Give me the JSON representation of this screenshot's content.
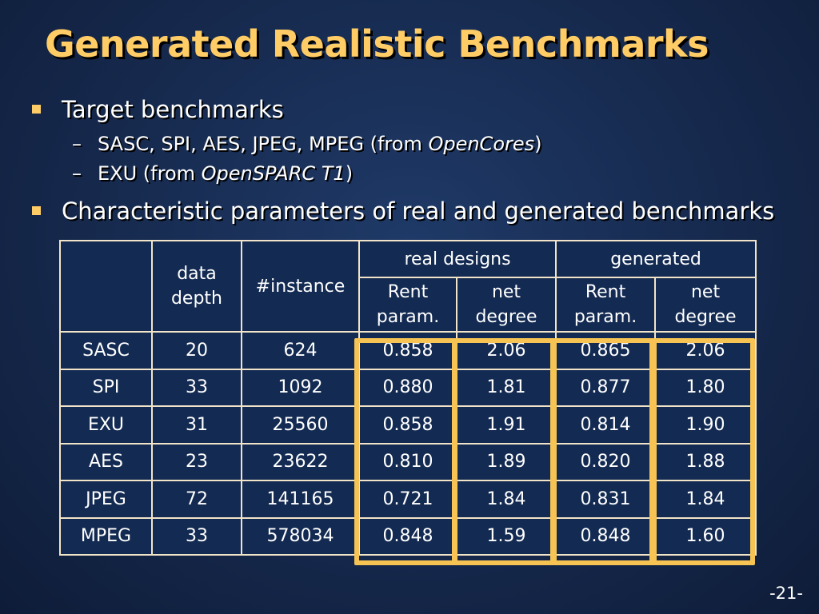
{
  "title": "Generated Realistic Benchmarks",
  "bullets": [
    {
      "text": "Target benchmarks",
      "subs": [
        {
          "dash": "–",
          "pre": "SASC, SPI, AES, JPEG, MPEG (from ",
          "em": "OpenCores",
          "post": ")"
        },
        {
          "dash": "–",
          "pre": "EXU (from ",
          "em": "OpenSPARC T1",
          "post": ")"
        }
      ]
    },
    {
      "text": "Characteristic parameters of real and generated benchmarks"
    }
  ],
  "table": {
    "headers": {
      "data_depth": [
        "data",
        "depth"
      ],
      "instance": "#instance",
      "real_designs": "real designs",
      "generated": "generated",
      "rent_param": [
        "Rent",
        "param."
      ],
      "net_degree": [
        "net",
        "degree"
      ]
    },
    "rows": [
      {
        "name": "SASC",
        "depth": "20",
        "instance": "624",
        "real_rent": "0.858",
        "real_net": "2.06",
        "gen_rent": "0.865",
        "gen_net": "2.06"
      },
      {
        "name": "SPI",
        "depth": "33",
        "instance": "1092",
        "real_rent": "0.880",
        "real_net": "1.81",
        "gen_rent": "0.877",
        "gen_net": "1.80"
      },
      {
        "name": "EXU",
        "depth": "31",
        "instance": "25560",
        "real_rent": "0.858",
        "real_net": "1.91",
        "gen_rent": "0.814",
        "gen_net": "1.90"
      },
      {
        "name": "AES",
        "depth": "23",
        "instance": "23622",
        "real_rent": "0.810",
        "real_net": "1.89",
        "gen_rent": "0.820",
        "gen_net": "1.88"
      },
      {
        "name": "JPEG",
        "depth": "72",
        "instance": "141165",
        "real_rent": "0.721",
        "real_net": "1.84",
        "gen_rent": "0.831",
        "gen_net": "1.84"
      },
      {
        "name": "MPEG",
        "depth": "33",
        "instance": "578034",
        "real_rent": "0.848",
        "real_net": "1.59",
        "gen_rent": "0.848",
        "gen_net": "1.60"
      }
    ]
  },
  "page_number": "-21-",
  "colors": {
    "title": "#ffcc66",
    "highlight": "#f7c453",
    "background": "#16294d"
  }
}
